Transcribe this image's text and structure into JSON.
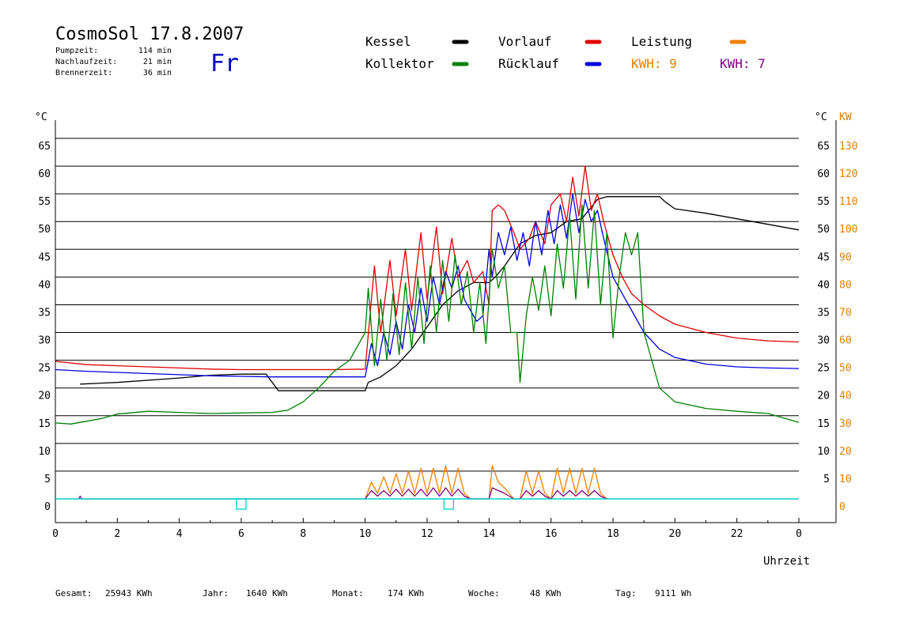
{
  "header": {
    "title": "CosmoSol 17.8.2007",
    "day": "Fr",
    "stats": [
      {
        "label": "Pumpzeit:",
        "value": "114 min"
      },
      {
        "label": "Nachlaufzeit:",
        "value": "21 min"
      },
      {
        "label": "Brennerzeit:",
        "value": "36 min"
      }
    ]
  },
  "legend": {
    "items": [
      {
        "label": "Kessel",
        "color": "#000000"
      },
      {
        "label": "Vorlauf",
        "color": "#e00000"
      },
      {
        "label": "Leistung",
        "color": "#f08000"
      },
      {
        "label": "Kollektor",
        "color": "#008000"
      },
      {
        "label": "Rücklauf",
        "color": "#0000e0"
      }
    ],
    "kwh": [
      {
        "text": "KWH: 9",
        "color": "#e08000"
      },
      {
        "text": "KWH: 7",
        "color": "#800080"
      }
    ]
  },
  "footer": [
    {
      "label": "Gesamt:",
      "value": "25943 KWh"
    },
    {
      "label": "Jahr:",
      "value": "1640 KWh"
    },
    {
      "label": "Monat:",
      "value": "174 KWh"
    },
    {
      "label": "Woche:",
      "value": "48 KWh"
    },
    {
      "label": "Tag:",
      "value": "9111 Wh"
    }
  ],
  "chart_data": {
    "type": "line",
    "x_label": "Uhrzeit",
    "x_ticks": [
      "0",
      "2",
      "4",
      "6",
      "8",
      "10",
      "12",
      "14",
      "16",
      "18",
      "20",
      "22",
      "0"
    ],
    "x_range": [
      0,
      24
    ],
    "y_left_unit": "°C",
    "y_right_temp_unit": "°C",
    "y_right_power_unit": "KW",
    "y_range": [
      0,
      65
    ],
    "y_left_ticks": [
      "0",
      "5",
      "10",
      "15",
      "20",
      "25",
      "30",
      "35",
      "40",
      "45",
      "50",
      "55",
      "60",
      "65"
    ],
    "y_right_temp_ticks": [
      "5",
      "10",
      "15",
      "20",
      "25",
      "30",
      "35",
      "40",
      "45",
      "50",
      "55",
      "60",
      "65"
    ],
    "y_right_power_ticks": [
      "0",
      "10",
      "20",
      "30",
      "40",
      "50",
      "60",
      "70",
      "80",
      "90",
      "100",
      "110",
      "120",
      "130"
    ],
    "grid": true,
    "baseline_color": "#00d0d0",
    "baseline_markers": [
      6.0,
      12.7
    ],
    "series": [
      {
        "name": "Kessel",
        "color": "#000000",
        "x": [
          0.8,
          2,
          4,
          5,
          6,
          6.8,
          7,
          7.2,
          9,
          10,
          10.1,
          10.5,
          11,
          11.5,
          12,
          12.5,
          13,
          13.5,
          14,
          14.2,
          14.5,
          15,
          15.5,
          16,
          16.5,
          17,
          17.5,
          17.8,
          19.5,
          19.7,
          20,
          21,
          22,
          23,
          24
        ],
        "y": [
          20.7,
          21,
          21.8,
          22.3,
          22.5,
          22.5,
          21,
          19.5,
          19.5,
          19.5,
          21,
          22,
          24,
          27,
          31,
          35,
          37.5,
          39,
          39,
          40,
          42,
          46,
          47.5,
          48,
          50,
          50.5,
          54,
          54.5,
          54.5,
          53.5,
          52.3,
          51.5,
          50.5,
          49.5,
          48.5
        ]
      },
      {
        "name": "Vorlauf",
        "color": "#e00000",
        "x": [
          0,
          1,
          2,
          3,
          4,
          5,
          6,
          7,
          8,
          9,
          10,
          10.3,
          10.5,
          10.8,
          11,
          11.3,
          11.5,
          11.8,
          12,
          12.3,
          12.5,
          12.8,
          13,
          13.3,
          13.5,
          13.8,
          14,
          14.1,
          14.3,
          14.5,
          14.8,
          15,
          15.3,
          15.5,
          15.8,
          16,
          16.3,
          16.5,
          16.7,
          16.9,
          17.1,
          17.3,
          17.5,
          17.7,
          18,
          18.3,
          18.6,
          19,
          19.5,
          20,
          21,
          22,
          23,
          24
        ],
        "y": [
          24.8,
          24.2,
          24,
          23.8,
          23.6,
          23.4,
          23.3,
          23.3,
          23.3,
          23.3,
          23.4,
          42,
          30,
          43,
          33,
          45,
          34,
          48,
          36,
          49,
          37,
          47,
          40,
          43,
          39,
          41,
          35,
          52,
          53,
          52,
          48,
          45,
          47,
          50,
          46,
          53,
          55,
          50,
          58,
          51,
          60,
          52,
          55,
          50,
          44,
          40,
          37,
          35,
          33,
          31.5,
          30,
          29,
          28.5,
          28.3
        ]
      },
      {
        "name": "Rücklauf",
        "color": "#0000e0",
        "x": [
          0,
          1,
          2,
          3,
          4,
          5,
          6,
          7,
          8,
          9,
          10,
          10.2,
          10.4,
          10.6,
          10.8,
          11,
          11.2,
          11.4,
          11.6,
          11.8,
          12,
          12.2,
          12.4,
          12.6,
          12.8,
          13,
          13.2,
          13.4,
          13.6,
          13.8,
          14,
          14.1,
          14.3,
          14.5,
          14.7,
          14.9,
          15.1,
          15.3,
          15.5,
          15.7,
          15.9,
          16.1,
          16.3,
          16.5,
          16.7,
          16.9,
          17.1,
          17.3,
          17.5,
          17.7,
          18,
          18.5,
          19,
          19.5,
          20,
          21,
          22,
          23,
          24
        ],
        "y": [
          23.3,
          23,
          22.8,
          22.6,
          22.4,
          22.2,
          22.1,
          22,
          22,
          22,
          22,
          28,
          24,
          30,
          26,
          32,
          27,
          35,
          30,
          38,
          32,
          40,
          35,
          41,
          38,
          42,
          36,
          34,
          32,
          33,
          45,
          40,
          48,
          44,
          49,
          43,
          48,
          42,
          50,
          44,
          52,
          46,
          53,
          47,
          55,
          48,
          54,
          50,
          52,
          47,
          40,
          35,
          30,
          27,
          25.5,
          24.3,
          23.8,
          23.6,
          23.5
        ]
      },
      {
        "name": "Kollektor",
        "color": "#008000",
        "x": [
          0,
          0.5,
          1,
          1.5,
          2,
          3,
          4,
          5,
          6,
          7,
          7.5,
          8,
          8.5,
          9,
          9.5,
          10,
          10.1,
          10.3,
          10.5,
          10.7,
          10.9,
          11.1,
          11.3,
          11.5,
          11.7,
          11.9,
          12.1,
          12.3,
          12.5,
          12.7,
          12.9,
          13.1,
          13.3,
          13.5,
          13.7,
          13.9,
          14.1,
          14.3,
          14.5,
          14.7,
          14.9,
          15,
          15.2,
          15.4,
          15.6,
          15.8,
          16,
          16.2,
          16.4,
          16.6,
          16.8,
          17,
          17.2,
          17.4,
          17.6,
          17.8,
          18,
          18.2,
          18.4,
          18.6,
          18.8,
          19,
          19.5,
          20,
          21,
          22,
          23,
          24
        ],
        "y": [
          13.7,
          13.5,
          14,
          14.5,
          15.3,
          15.8,
          15.6,
          15.4,
          15.5,
          15.6,
          16,
          17.5,
          20,
          23,
          25,
          30,
          38,
          24,
          36,
          25,
          37,
          26,
          39,
          27,
          40,
          28,
          42,
          30,
          43,
          32,
          44,
          35,
          41,
          30,
          39,
          28,
          45,
          38,
          42,
          30,
          30,
          21,
          33,
          40,
          34,
          42,
          33,
          46,
          38,
          51,
          36,
          53,
          38,
          52,
          35,
          48,
          29,
          40,
          48,
          44,
          48,
          30,
          20,
          17.5,
          16.3,
          15.8,
          15.4,
          13.8
        ]
      }
    ],
    "power_series": [
      {
        "name": "Leistung",
        "color": "#f08000",
        "x": [
          10,
          10.2,
          10.4,
          10.6,
          10.8,
          11,
          11.2,
          11.4,
          11.6,
          11.8,
          12,
          12.2,
          12.4,
          12.6,
          12.8,
          13,
          13.2,
          13.4,
          14,
          14.1,
          14.3,
          14.5,
          14.8,
          15,
          15.2,
          15.4,
          15.6,
          15.8,
          16,
          16.2,
          16.4,
          16.6,
          16.8,
          17,
          17.2,
          17.4,
          17.6,
          17.8
        ],
        "y": [
          0,
          6,
          2,
          8,
          2,
          9,
          2,
          10,
          2,
          11,
          2,
          11,
          2,
          12,
          2,
          11,
          2,
          0,
          0,
          12,
          6,
          4,
          0,
          0,
          10,
          2,
          10,
          2,
          0,
          11,
          2,
          11,
          2,
          11,
          2,
          11,
          2,
          0
        ]
      },
      {
        "name": "Leistung-purple",
        "color": "#800080",
        "x": [
          0.75,
          0.8,
          0.85,
          10,
          10.2,
          10.4,
          10.6,
          10.8,
          11,
          11.2,
          11.4,
          11.6,
          11.8,
          12,
          12.2,
          12.4,
          12.6,
          12.8,
          13,
          13.2,
          13.4,
          14,
          14.1,
          14.3,
          14.5,
          14.8,
          15,
          15.2,
          15.4,
          15.6,
          15.8,
          16,
          16.2,
          16.4,
          16.6,
          16.8,
          17,
          17.2,
          17.4,
          17.6,
          17.8
        ],
        "y": [
          0,
          1,
          0,
          0,
          3,
          1,
          3,
          1,
          3.5,
          1,
          3.5,
          1,
          3.5,
          1,
          4,
          1,
          4,
          1,
          3.5,
          1,
          0,
          0,
          4,
          3,
          2,
          0,
          0,
          3,
          1,
          3,
          1,
          0,
          3,
          1,
          3,
          1,
          3,
          1,
          3,
          1,
          0
        ]
      }
    ]
  }
}
